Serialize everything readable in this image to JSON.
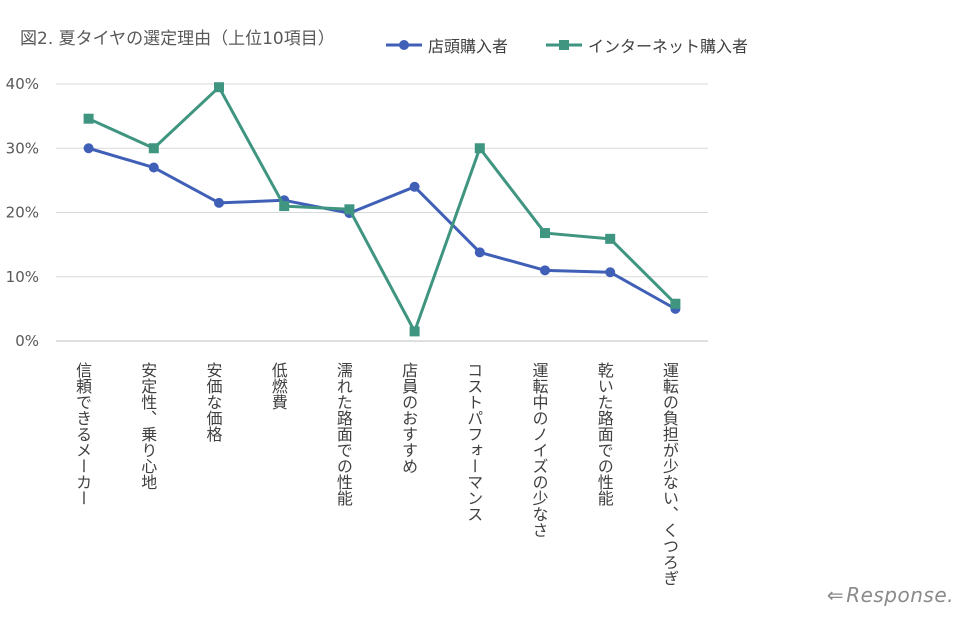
{
  "chart_data": {
    "type": "line",
    "title": "図2. 夏タイヤの選定理由（上位10項目）",
    "categories": [
      "信頼できるメーカー",
      "安定性、乗り心地",
      "安価な価格",
      "低燃費",
      "濡れた路面での性能",
      "店員のおすすめ",
      "コストパフォーマンス",
      "運転中のノイズの少なさ",
      "乾いた路面での性能",
      "運転の負担が少ない、くつろぎ"
    ],
    "series": [
      {
        "name": "店頭購入者",
        "color": "#4060b8",
        "marker": "circle",
        "values": [
          30.0,
          27.0,
          21.5,
          21.9,
          19.9,
          24.0,
          13.8,
          11.0,
          10.7,
          5.0
        ]
      },
      {
        "name": "インターネット購入者",
        "color": "#3f9580",
        "marker": "square",
        "values": [
          34.6,
          30.0,
          39.5,
          21.0,
          20.5,
          1.5,
          30.0,
          16.8,
          15.9,
          5.8
        ]
      }
    ],
    "ylim": [
      0,
      40
    ],
    "yticks": [
      "0%",
      "10%",
      "20%",
      "30%",
      "40%"
    ],
    "grid": true,
    "legend": "top"
  },
  "watermark": {
    "arrow": "⇐",
    "text": "Response."
  }
}
